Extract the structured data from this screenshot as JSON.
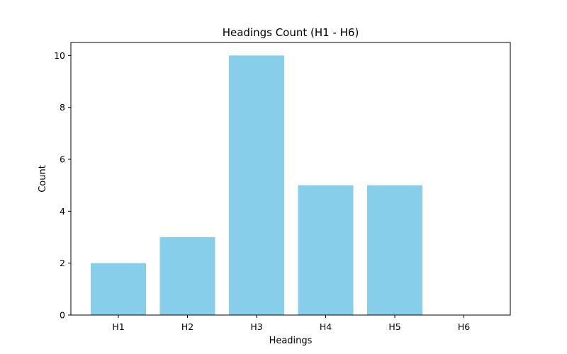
{
  "chart_data": {
    "type": "bar",
    "title": "Headings Count (H1 - H6)",
    "xlabel": "Headings",
    "ylabel": "Count",
    "categories": [
      "H1",
      "H2",
      "H3",
      "H4",
      "H5",
      "H6"
    ],
    "values": [
      2,
      3,
      10,
      5,
      5,
      0
    ],
    "ylim": [
      0,
      10.5
    ],
    "yticks": [
      0,
      2,
      4,
      6,
      8,
      10
    ],
    "bar_color": "#87CEEB",
    "grid": false,
    "legend": "none"
  }
}
